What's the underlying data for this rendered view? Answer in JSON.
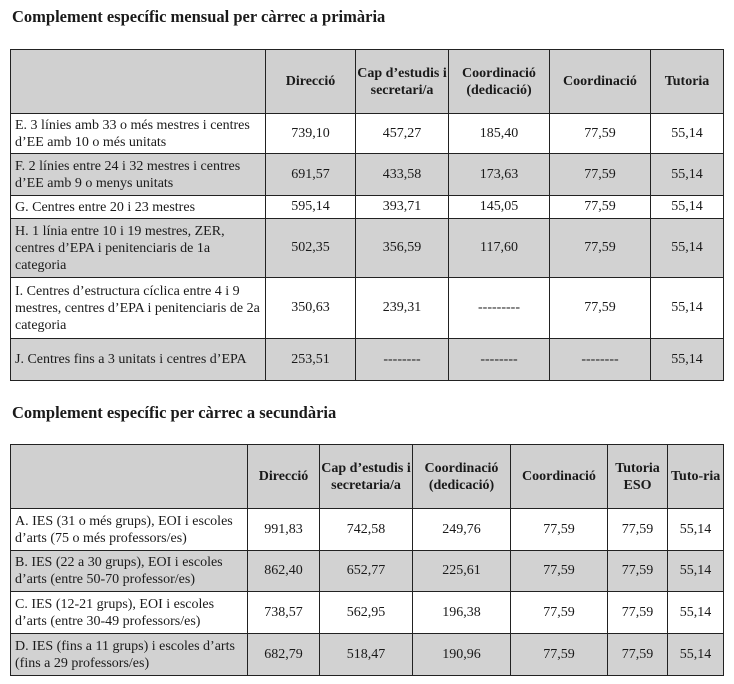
{
  "primaria": {
    "title": "Complement específic mensual per càrrec a primària",
    "headers": [
      "",
      "Direcció",
      "Cap d’estudis i secretari/a",
      "Coordinació (dedicació)",
      "Coordinació",
      "Tutoria"
    ],
    "rows": [
      {
        "label": "E. 3 línies amb 33 o més mestres i centres d’EE amb 10 o més unitats",
        "values": [
          "739,10",
          "457,27",
          "185,40",
          "77,59",
          "55,14"
        ]
      },
      {
        "label": "F. 2 línies entre 24 i 32 mestres i centres d’EE amb 9 o menys unitats",
        "values": [
          "691,57",
          "433,58",
          "173,63",
          "77,59",
          "55,14"
        ]
      },
      {
        "label": "G. Centres entre 20 i 23 mestres",
        "values": [
          "595,14",
          "393,71",
          "145,05",
          "77,59",
          "55,14"
        ]
      },
      {
        "label": "H. 1 línia entre 10 i 19 mestres, ZER, centres d’EPA i penitenciaris de 1a categoria",
        "values": [
          "502,35",
          "356,59",
          "117,60",
          "77,59",
          "55,14"
        ]
      },
      {
        "label": "I. Centres d’estructura cíclica entre 4 i 9 mestres, centres d’EPA i penitenciaris de 2a categoria",
        "values": [
          "350,63",
          "239,31",
          "---------",
          "77,59",
          "55,14"
        ]
      },
      {
        "label": "J. Centres fins a 3 unitats i centres d’EPA",
        "values": [
          "253,51",
          "--------",
          "--------",
          "--------",
          "55,14"
        ]
      }
    ]
  },
  "secundaria": {
    "title": "Complement específic per càrrec a secundària",
    "headers": [
      "",
      "Direcció",
      "Cap d’estudis i secretaria/a",
      "Coordinació (dedicació)",
      "Coordinació",
      "Tutoria ESO",
      "Tuto-ria"
    ],
    "rows": [
      {
        "label": "A. IES (31 o més grups), EOI i escoles d’arts (75 o més professors/es)",
        "values": [
          "991,83",
          "742,58",
          "249,76",
          "77,59",
          "77,59",
          "55,14"
        ]
      },
      {
        "label": "B. IES (22 a 30 grups), EOI i escoles d’arts (entre 50-70 professor/es)",
        "values": [
          "862,40",
          "652,77",
          "225,61",
          "77,59",
          "77,59",
          "55,14"
        ]
      },
      {
        "label": "C. IES (12-21 grups), EOI i escoles d’arts (entre 30-49 professors/es)",
        "values": [
          "738,57",
          "562,95",
          "196,38",
          "77,59",
          "77,59",
          "55,14"
        ]
      },
      {
        "label": "D. IES (fins a 11 grups) i escoles d’arts (fins a 29 professors/es)",
        "values": [
          "682,79",
          "518,47",
          "190,96",
          "77,59",
          "77,59",
          "55,14"
        ]
      }
    ]
  }
}
